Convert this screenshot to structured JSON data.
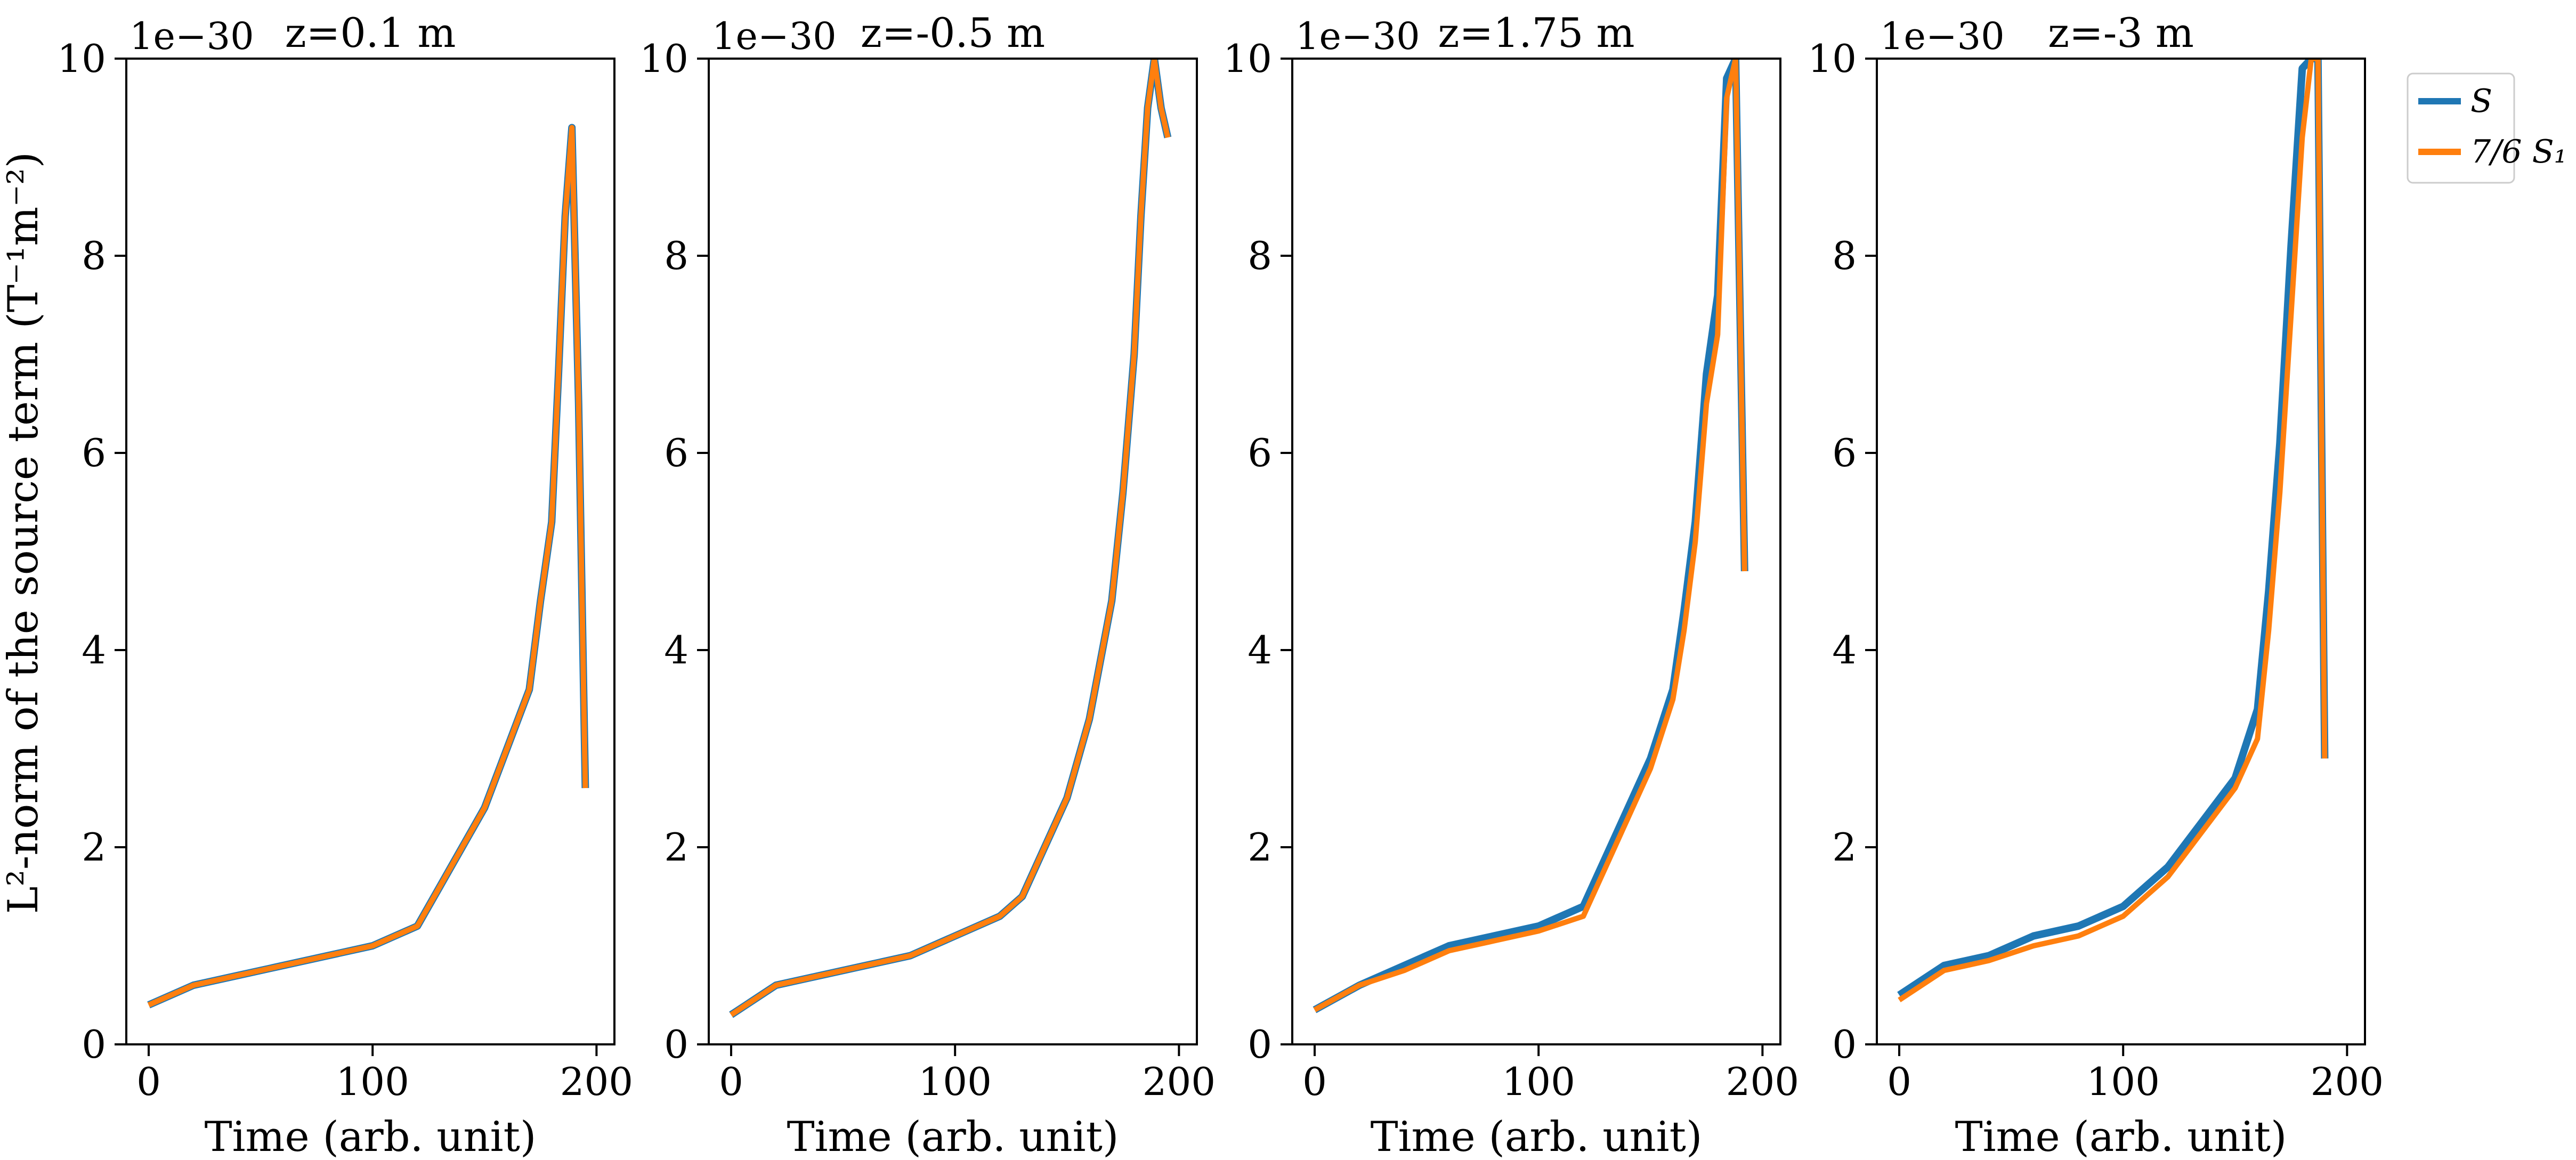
{
  "figure": {
    "ylabel": "L²-norm of the source term (T⁻¹m⁻²)",
    "offset_text": "1e−30",
    "legend": [
      {
        "label": "S",
        "color": "#1f77b4"
      },
      {
        "label": "7/6 S₁",
        "color": "#ff7f0e"
      }
    ]
  },
  "chart_data": [
    {
      "type": "line",
      "title": "z=0.1 m",
      "xlabel": "Time (arb. unit)",
      "ylabel": "L²-norm of the source term (T⁻¹m⁻²)",
      "xlim": [
        -10,
        208
      ],
      "ylim": [
        0,
        10
      ],
      "y_scale": "1e-30",
      "xticks": [
        0,
        100,
        200
      ],
      "yticks": [
        0,
        2,
        4,
        6,
        8,
        10
      ],
      "series": [
        {
          "name": "S",
          "color": "#1f77b4",
          "x": [
            0,
            20,
            40,
            60,
            80,
            100,
            120,
            130,
            140,
            150,
            160,
            170,
            175,
            180,
            183,
            186,
            189,
            192,
            195
          ],
          "y": [
            0.4,
            0.6,
            0.7,
            0.8,
            0.9,
            1.0,
            1.2,
            1.6,
            2.0,
            2.4,
            3.0,
            3.6,
            4.5,
            5.3,
            6.8,
            8.4,
            9.3,
            6.5,
            2.6
          ]
        },
        {
          "name": "7/6 S₁",
          "color": "#ff7f0e",
          "x": [
            0,
            20,
            40,
            60,
            80,
            100,
            120,
            130,
            140,
            150,
            160,
            170,
            175,
            180,
            183,
            186,
            189,
            192,
            195
          ],
          "y": [
            0.4,
            0.6,
            0.7,
            0.8,
            0.9,
            1.0,
            1.2,
            1.6,
            2.0,
            2.4,
            3.0,
            3.6,
            4.5,
            5.3,
            6.8,
            8.4,
            9.3,
            6.5,
            2.6
          ]
        }
      ]
    },
    {
      "type": "line",
      "title": "z=-0.5 m",
      "xlabel": "Time (arb. unit)",
      "ylabel": "",
      "xlim": [
        -10,
        208
      ],
      "ylim": [
        0,
        10
      ],
      "y_scale": "1e-30",
      "xticks": [
        0,
        100,
        200
      ],
      "yticks": [
        0,
        2,
        4,
        6,
        8,
        10
      ],
      "series": [
        {
          "name": "S",
          "color": "#1f77b4",
          "x": [
            0,
            20,
            40,
            60,
            80,
            100,
            120,
            130,
            140,
            150,
            160,
            170,
            175,
            180,
            183,
            186,
            189,
            192,
            195
          ],
          "y": [
            0.3,
            0.6,
            0.7,
            0.8,
            0.9,
            1.1,
            1.3,
            1.5,
            2.0,
            2.5,
            3.3,
            4.5,
            5.6,
            7.0,
            8.4,
            9.5,
            10.0,
            9.5,
            9.2
          ]
        },
        {
          "name": "7/6 S₁",
          "color": "#ff7f0e",
          "x": [
            0,
            20,
            40,
            60,
            80,
            100,
            120,
            130,
            140,
            150,
            160,
            170,
            175,
            180,
            183,
            186,
            189,
            192,
            195
          ],
          "y": [
            0.3,
            0.6,
            0.7,
            0.8,
            0.9,
            1.1,
            1.3,
            1.5,
            2.0,
            2.5,
            3.3,
            4.5,
            5.6,
            7.0,
            8.4,
            9.5,
            10.0,
            9.5,
            9.2
          ]
        }
      ]
    },
    {
      "type": "line",
      "title": "z=1.75 m",
      "xlabel": "Time (arb. unit)",
      "ylabel": "",
      "xlim": [
        -10,
        208
      ],
      "ylim": [
        0,
        10
      ],
      "y_scale": "1e-30",
      "xticks": [
        0,
        100,
        200
      ],
      "yticks": [
        0,
        2,
        4,
        6,
        8,
        10
      ],
      "series": [
        {
          "name": "S",
          "color": "#1f77b4",
          "x": [
            0,
            20,
            40,
            60,
            80,
            100,
            120,
            130,
            140,
            150,
            160,
            165,
            170,
            175,
            180,
            184,
            188,
            192
          ],
          "y": [
            0.35,
            0.6,
            0.8,
            1.0,
            1.1,
            1.2,
            1.4,
            1.9,
            2.4,
            2.9,
            3.6,
            4.4,
            5.3,
            6.8,
            7.6,
            9.8,
            10.0,
            4.8
          ]
        },
        {
          "name": "7/6 S₁",
          "color": "#ff7f0e",
          "x": [
            0,
            20,
            40,
            60,
            80,
            100,
            120,
            130,
            140,
            150,
            160,
            165,
            170,
            175,
            180,
            184,
            188,
            192
          ],
          "y": [
            0.35,
            0.6,
            0.75,
            0.95,
            1.05,
            1.15,
            1.3,
            1.8,
            2.3,
            2.8,
            3.5,
            4.2,
            5.1,
            6.5,
            7.2,
            9.6,
            10.0,
            4.8
          ]
        }
      ]
    },
    {
      "type": "line",
      "title": "z=-3 m",
      "xlabel": "Time (arb. unit)",
      "ylabel": "",
      "xlim": [
        -10,
        208
      ],
      "ylim": [
        0,
        10
      ],
      "y_scale": "1e-30",
      "xticks": [
        0,
        100,
        200
      ],
      "yticks": [
        0,
        2,
        4,
        6,
        8,
        10
      ],
      "series": [
        {
          "name": "S",
          "color": "#1f77b4",
          "x": [
            0,
            20,
            40,
            60,
            80,
            100,
            120,
            130,
            140,
            150,
            160,
            165,
            170,
            175,
            180,
            184,
            187,
            190
          ],
          "y": [
            0.5,
            0.8,
            0.9,
            1.1,
            1.2,
            1.4,
            1.8,
            2.1,
            2.4,
            2.7,
            3.4,
            4.6,
            6.1,
            8.1,
            9.9,
            10.0,
            10.0,
            2.9
          ]
        },
        {
          "name": "7/6 S₁",
          "color": "#ff7f0e",
          "x": [
            0,
            20,
            40,
            60,
            80,
            100,
            120,
            130,
            140,
            150,
            160,
            165,
            170,
            175,
            180,
            184,
            187,
            190
          ],
          "y": [
            0.45,
            0.75,
            0.85,
            1.0,
            1.1,
            1.3,
            1.7,
            2.0,
            2.3,
            2.6,
            3.1,
            4.2,
            5.6,
            7.4,
            9.2,
            10.0,
            10.0,
            2.9
          ]
        }
      ]
    }
  ]
}
